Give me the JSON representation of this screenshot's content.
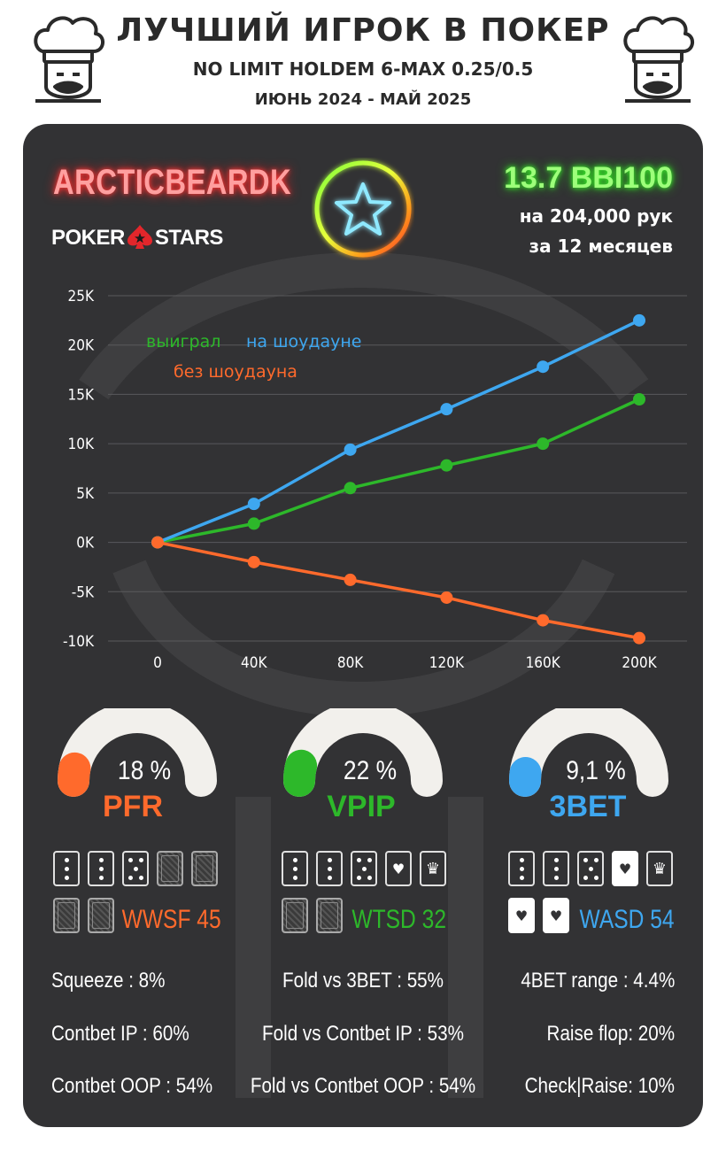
{
  "header": {
    "title": "ЛУЧШИЙ ИГРОК В ПОКЕР",
    "subtitle": "NO LIMIT HOLDEM 6-MAX 0.25/0.5",
    "period": "ИЮНЬ 2024 - МАЙ 2025"
  },
  "player": {
    "name": "ARCTICBEARDK",
    "site_left": "POKER",
    "site_right": "STARS",
    "winrate": "13.7 BBI100",
    "hands": "на 204,000 рук",
    "months": "за  12 месяцев"
  },
  "colors": {
    "won": "#2db82a",
    "showdown": "#3ea7f0",
    "non_showdown": "#ff6a2c",
    "card_bg": "#323234",
    "grid": "#5a5a5c"
  },
  "chart_data": {
    "type": "line",
    "x": [
      0,
      40000,
      80000,
      120000,
      160000,
      200000
    ],
    "xticks": [
      "0",
      "40K",
      "80K",
      "120K",
      "160K",
      "200K"
    ],
    "yticks": [
      "25K",
      "20K",
      "15K",
      "10K",
      "5K",
      "0K",
      "-5K",
      "-10K"
    ],
    "ylim": [
      -10000,
      25000
    ],
    "grid": true,
    "legend_placement": "top-left",
    "series": [
      {
        "name": "выиграл",
        "color": "#2db82a",
        "values": [
          0,
          1900,
          5500,
          7800,
          10000,
          14500
        ]
      },
      {
        "name": "на шоудауне",
        "color": "#3ea7f0",
        "values": [
          0,
          3900,
          9400,
          13500,
          17800,
          22500
        ]
      },
      {
        "name": "без шоудауна",
        "color": "#ff6a2c",
        "values": [
          0,
          -2000,
          -3800,
          -5600,
          -7900,
          -9700
        ]
      }
    ]
  },
  "gauges": [
    {
      "label": "PFR",
      "value": "18 %",
      "fraction": 0.18,
      "color": "#ff6a2c"
    },
    {
      "label": "VPIP",
      "value": "22 %",
      "fraction": 0.22,
      "color": "#2db82a"
    },
    {
      "label": "3BET",
      "value": "9,1 %",
      "fraction": 0.091,
      "color": "#3ea7f0"
    }
  ],
  "card_stats": [
    {
      "label": "WWSF 45",
      "color": "#ff6a2c"
    },
    {
      "label": "WTSD 32",
      "color": "#2db82a"
    },
    {
      "label": "WASD 54",
      "color": "#3ea7f0"
    }
  ],
  "stats": {
    "row1": [
      "Squeeze : 8%",
      "Fold vs 3BET : 55%",
      "4BET range : 4.4%"
    ],
    "row2": [
      "Contbet IP : 60%",
      "Fold vs Contbet IP : 53%",
      "Raise flop: 20%"
    ],
    "row3": [
      "Contbet OOP : 54%",
      "Fold vs Contbet OOP : 54%",
      "Check|Raise: 10%"
    ]
  }
}
